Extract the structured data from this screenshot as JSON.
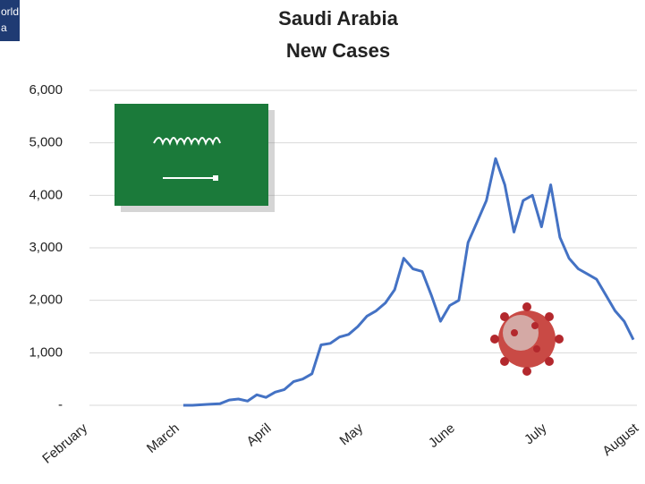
{
  "logo": {
    "lines": [
      "orld",
      "a"
    ]
  },
  "chart_data": {
    "type": "line",
    "title": "Saudi Arabia",
    "subtitle": "New Cases",
    "categories": [
      "February",
      null,
      null,
      null,
      null,
      null,
      null,
      null,
      null,
      null,
      "March",
      null,
      null,
      null,
      null,
      null,
      null,
      null,
      null,
      null,
      "April",
      null,
      null,
      null,
      null,
      null,
      null,
      null,
      null,
      null,
      "May",
      null,
      null,
      null,
      null,
      null,
      null,
      null,
      null,
      null,
      "June",
      null,
      null,
      null,
      null,
      null,
      null,
      null,
      null,
      null,
      "July",
      null,
      null,
      null,
      null,
      null,
      null,
      null,
      null,
      null,
      "August"
    ],
    "values": [
      null,
      null,
      null,
      null,
      null,
      null,
      null,
      null,
      null,
      null,
      null,
      0,
      0,
      10,
      20,
      30,
      100,
      120,
      80,
      200,
      150,
      250,
      300,
      450,
      500,
      600,
      1150,
      1180,
      1300,
      1350,
      1500,
      1700,
      1800,
      1950,
      2200,
      2800,
      2600,
      2550,
      2100,
      1600,
      1900,
      2000,
      3100,
      3500,
      3900,
      4700,
      4200,
      3300,
      3900,
      4000,
      3400,
      4200,
      3200,
      2800,
      2600,
      2500,
      2400,
      2100,
      1800,
      1600,
      1250
    ],
    "color": "#4472c4",
    "ylim": [
      0,
      6000
    ],
    "yticks": [
      {
        "value": 0,
        "label": "-"
      },
      {
        "value": 1000,
        "label": "1,000"
      },
      {
        "value": 2000,
        "label": "2,000"
      },
      {
        "value": 3000,
        "label": "3,000"
      },
      {
        "value": 4000,
        "label": "4,000"
      },
      {
        "value": 5000,
        "label": "5,000"
      },
      {
        "value": 6000,
        "label": "6,000"
      }
    ],
    "grid": true
  }
}
